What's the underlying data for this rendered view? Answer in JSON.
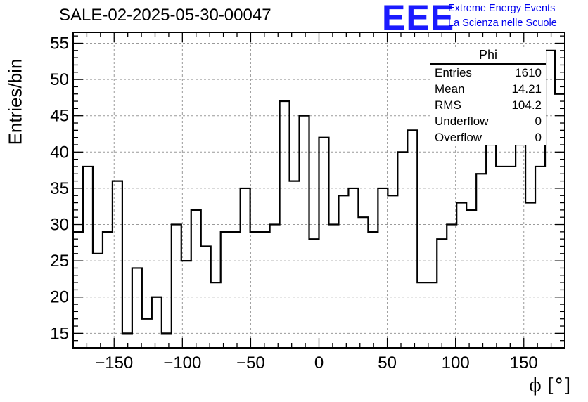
{
  "header": {
    "title": "SALE-02-2025-05-30-00047",
    "logo_text": "EEE",
    "org_line1": "Extreme Energy Events",
    "org_line2": "La Scienza nelle Scuole"
  },
  "colors": {
    "logo": "#1a1aff",
    "org_text": "#0000ee",
    "grid": "#9a9a9a",
    "line": "#000000"
  },
  "stats": {
    "name": "Phi",
    "rows": [
      {
        "label": "Entries",
        "value": "1610"
      },
      {
        "label": "Mean",
        "value": "14.21"
      },
      {
        "label": "RMS",
        "value": "104.2"
      },
      {
        "label": "Underflow",
        "value": "0"
      },
      {
        "label": "Overflow",
        "value": "0"
      }
    ]
  },
  "chart_data": {
    "type": "histogram",
    "title": "SALE-02-2025-05-30-00047",
    "xlabel": "ϕ [°]",
    "ylabel": "Entries/bin",
    "xlim": [
      -180,
      180
    ],
    "ylim": [
      13,
      56.5
    ],
    "bin_width": 7.2,
    "bin_edges_start": -180,
    "values": [
      29,
      38,
      26,
      29,
      36,
      15,
      24,
      17,
      20,
      15,
      30,
      25,
      32,
      27,
      22,
      29,
      29,
      35,
      29,
      29,
      30,
      47,
      36,
      45,
      28,
      42,
      30,
      34,
      35,
      31,
      29,
      35,
      34,
      40,
      43,
      22,
      22,
      28,
      30,
      33,
      32,
      37,
      41,
      38,
      38,
      41,
      33,
      38,
      54,
      48
    ],
    "xticks": [
      -150,
      -100,
      -50,
      0,
      50,
      100,
      150
    ],
    "xtick_labels": [
      "−150",
      "−100",
      "−50",
      "0",
      "50",
      "100",
      "150"
    ],
    "yticks": [
      15,
      20,
      25,
      30,
      35,
      40,
      45,
      50,
      55
    ],
    "ytick_labels": [
      "15",
      "20",
      "25",
      "30",
      "35",
      "40",
      "45",
      "50",
      "55"
    ],
    "grid": true
  }
}
